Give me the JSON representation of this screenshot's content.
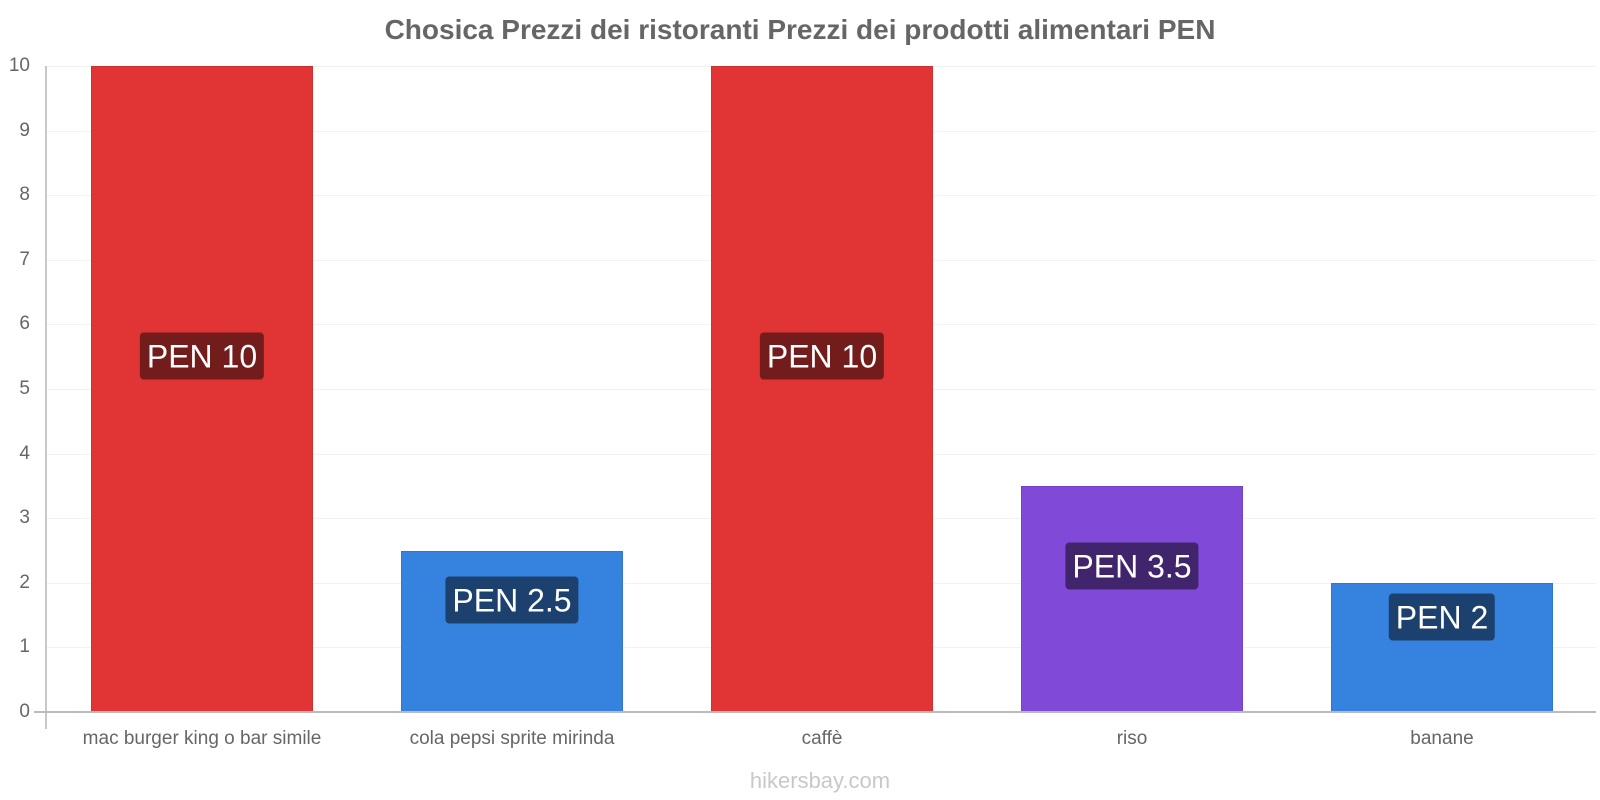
{
  "title": "Chosica Prezzi dei ristoranti Prezzi dei prodotti alimentari PEN",
  "watermark": "hikersbay.com",
  "y_axis": {
    "ticks": [
      "0",
      "1",
      "2",
      "3",
      "4",
      "5",
      "6",
      "7",
      "8",
      "9",
      "10"
    ]
  },
  "bars": [
    {
      "category": "mac burger king o bar simile",
      "value": 10,
      "label": "PEN 10",
      "color": "#e13535",
      "label_bg": "#731c1c"
    },
    {
      "category": "cola pepsi sprite mirinda",
      "value": 2.5,
      "label": "PEN 2.5",
      "color": "#3683df",
      "label_bg": "#1d416f"
    },
    {
      "category": "caffè",
      "value": 10,
      "label": "PEN 10",
      "color": "#e13535",
      "label_bg": "#731c1c"
    },
    {
      "category": "riso",
      "value": 3.5,
      "label": "PEN 3.5",
      "color": "#8149d7",
      "label_bg": "#41256c"
    },
    {
      "category": "banane",
      "value": 2,
      "label": "PEN 2",
      "color": "#3683df",
      "label_bg": "#1d416f"
    }
  ],
  "chart_data": {
    "type": "bar",
    "title": "Chosica Prezzi dei ristoranti Prezzi dei prodotti alimentari PEN",
    "categories": [
      "mac burger king o bar simile",
      "cola pepsi sprite mirinda",
      "caffè",
      "riso",
      "banane"
    ],
    "values": [
      10,
      2.5,
      10,
      3.5,
      2
    ],
    "data_labels": [
      "PEN 10",
      "PEN 2.5",
      "PEN 10",
      "PEN 3.5",
      "PEN 2"
    ],
    "colors": [
      "#e13535",
      "#3683df",
      "#e13535",
      "#8149d7",
      "#3683df"
    ],
    "xlabel": "",
    "ylabel": "",
    "ylim": [
      0,
      10
    ],
    "yticks": [
      0,
      1,
      2,
      3,
      4,
      5,
      6,
      7,
      8,
      9,
      10
    ],
    "grid": true,
    "legend": null,
    "unit": "PEN"
  }
}
